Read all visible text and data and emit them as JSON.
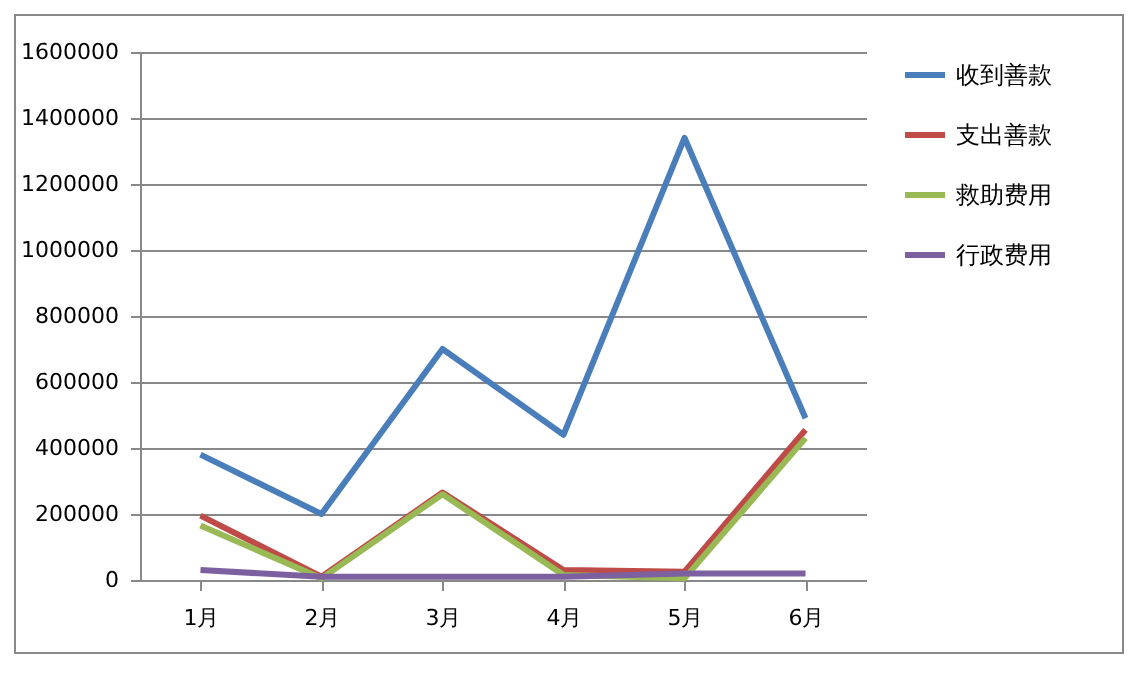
{
  "chart_data": {
    "type": "line",
    "categories": [
      "1月",
      "2月",
      "3月",
      "4月",
      "5月",
      "6月"
    ],
    "series": [
      {
        "name": "收到善款",
        "color": "#4a7ebb",
        "values": [
          380000,
          200000,
          700000,
          440000,
          1340000,
          490000
        ]
      },
      {
        "name": "支出善款",
        "color": "#be4b48",
        "values": [
          195000,
          10000,
          265000,
          30000,
          25000,
          455000
        ]
      },
      {
        "name": "救助费用",
        "color": "#98b954",
        "values": [
          165000,
          5000,
          260000,
          15000,
          5000,
          430000
        ]
      },
      {
        "name": "行政费用",
        "color": "#7d60a0",
        "values": [
          30000,
          10000,
          10000,
          10000,
          20000,
          20000
        ]
      }
    ],
    "ylim": [
      0,
      1600000
    ],
    "yticks": [
      0,
      200000,
      400000,
      600000,
      800000,
      1000000,
      1200000,
      1400000,
      1600000
    ],
    "grid": "y",
    "legend": "right",
    "marker": "none",
    "line_style": "solid"
  }
}
